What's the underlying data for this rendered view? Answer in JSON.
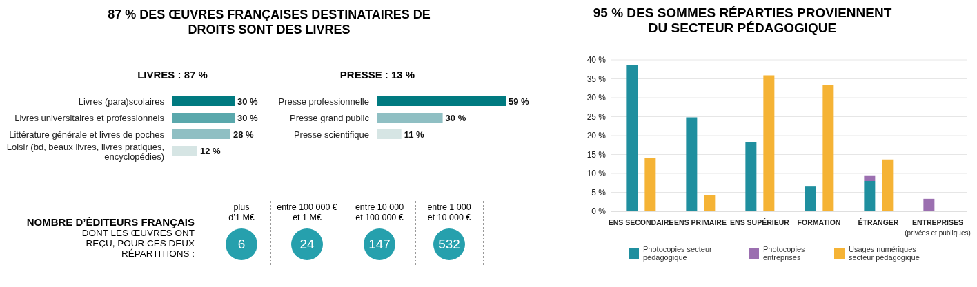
{
  "chart_data": [
    {
      "type": "bar",
      "orientation": "horizontal",
      "title": "87 % DES ŒUVRES FRANÇAISES DESTINATAIRES DE DROITS SONT DES LIVRES",
      "subtitle": "LIVRES : 87 %",
      "categories": [
        "Livres (para)scolaires",
        "Livres universitaires et professionnels",
        "Littérature générale et livres de poches",
        "Loisir (bd, beaux livres, livres pratiques, encyclopédies)"
      ],
      "values": [
        30,
        30,
        28,
        12
      ],
      "colors": [
        "#007a80",
        "#5aa8ac",
        "#8fbfc3",
        "#d6e5e4"
      ],
      "value_labels": [
        "30 %",
        "30 %",
        "28 %",
        "12 %"
      ],
      "tick_labels": "y"
    },
    {
      "type": "bar",
      "orientation": "horizontal",
      "title": "PRESSE : 13 %",
      "categories": [
        "Presse professionnelle",
        "Presse grand public",
        "Presse scientifique"
      ],
      "values": [
        59,
        30,
        11
      ],
      "colors": [
        "#007a80",
        "#8fbfc3",
        "#d6e5e4"
      ],
      "value_labels": [
        "59 %",
        "30 %",
        "11 %"
      ],
      "tick_labels": "y"
    },
    {
      "type": "other",
      "title": "NOMBRE D’ÉDITEURS FRANÇAIS",
      "subtitle": "DONT LES ŒUVRES ONT REÇU, POUR CES DEUX RÉPARTITIONS :",
      "categories": [
        "plus\nd’1 M€",
        "entre 100 000 €\net 1 M€",
        "entre 10 000\net 100 000 €",
        "entre 1 000\net 10 000 €"
      ],
      "values": [
        6,
        24,
        147,
        532
      ],
      "color": "#26a0ad",
      "data_labels": true
    },
    {
      "type": "bar",
      "title": "95 % DES SOMMES RÉPARTIES PROVIENNENT DU SECTEUR PÉDAGOGIQUE",
      "categories": [
        "ENS SECONDAIRE",
        "ENS PRIMAIRE",
        "ENS SUPÉRIEUR",
        "FORMATION",
        "ÉTRANGER",
        "ENTREPRISES\n(privées et publiques)"
      ],
      "series": [
        {
          "name": "Photocopies secteur pédagogique",
          "color": "#1f8f9f",
          "values": [
            38.6,
            24.8,
            18.2,
            6.7,
            8.0,
            null
          ]
        },
        {
          "name": "Photocopies entreprises",
          "color": "#9b6fb0",
          "values": [
            null,
            null,
            null,
            null,
            1.5,
            3.3
          ],
          "base": [
            null,
            null,
            null,
            null,
            8.0,
            0
          ]
        },
        {
          "name": "Usages numériques secteur pédagogique",
          "color": "#f5b335",
          "values": [
            14.2,
            4.2,
            35.9,
            33.3,
            13.7,
            null
          ]
        }
      ],
      "ylim": [
        0,
        40
      ],
      "yticks": [
        {
          "value": 0,
          "label": "0 %"
        },
        {
          "value": 5,
          "label": "5 %"
        },
        {
          "value": 10,
          "label": "10 %"
        },
        {
          "value": 15,
          "label": "15 %"
        },
        {
          "value": 20,
          "label": "20 %"
        },
        {
          "value": 25,
          "label": "25 %"
        },
        {
          "value": 30,
          "label": "30 %"
        },
        {
          "value": 35,
          "label": "35 %"
        },
        {
          "value": 40,
          "label": "40 %"
        }
      ],
      "grid": "y",
      "legend": "bottom"
    }
  ]
}
